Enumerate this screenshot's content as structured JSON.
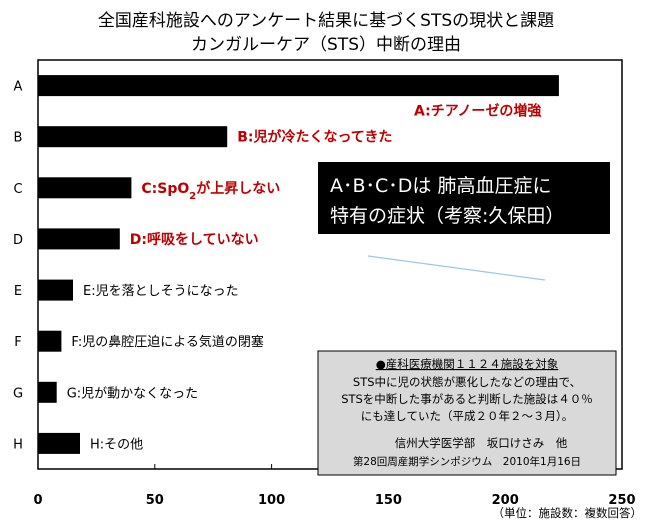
{
  "chart_data": {
    "type": "bar",
    "orientation": "horizontal",
    "title": "全国産科施設へのアンケート結果に基づくSTSの現状と課題",
    "subtitle": "カンガルーケア（STS）中断の理由",
    "categories": [
      "A",
      "B",
      "C",
      "D",
      "E",
      "F",
      "G",
      "H"
    ],
    "values": [
      223,
      81,
      40,
      35,
      15,
      10,
      8,
      18
    ],
    "xlim": [
      0,
      250
    ],
    "xticks": [
      0,
      50,
      100,
      150,
      200,
      250
    ],
    "unit_note": "（単位：施設数：複数回答）",
    "grid": false,
    "bar_color": "#000000",
    "highlight_color": "#c00000",
    "annotations": [
      {
        "category": "A",
        "label": "A:チアノーゼの増強",
        "color": "#c00000",
        "highlight": true
      },
      {
        "category": "B",
        "label": "B:児が冷たくなってきた",
        "color": "#c00000",
        "highlight": true
      },
      {
        "category": "C",
        "label_prefix": "C:SpO",
        "label_sub": "2",
        "label_suffix": "が上昇しない",
        "color": "#c00000",
        "highlight": true
      },
      {
        "category": "D",
        "label": "D:呼吸をしていない",
        "color": "#c00000",
        "highlight": true
      },
      {
        "category": "E",
        "label": "E:児を落としそうになった",
        "color": "#000000",
        "highlight": false
      },
      {
        "category": "F",
        "label": "F:児の鼻腔圧迫による気道の閉塞",
        "color": "#000000",
        "highlight": false
      },
      {
        "category": "G",
        "label": "G:児が動かなくなった",
        "color": "#000000",
        "highlight": false
      },
      {
        "category": "H",
        "label": "H:その他",
        "color": "#000000",
        "highlight": false
      }
    ],
    "callout": {
      "line1": "A･B･C･Dは 肺高血圧症に",
      "line2": "特有の症状（考察:久保田）"
    },
    "source_box": {
      "heading": "●産科医療機関１１２４施設を対象",
      "line1": "STS中に児の状態が悪化したなどの理由で、",
      "line2": "STSを中断した事があると判断した施設は４０％",
      "line3": "にも達していた（平成２０年２〜３月）。",
      "author": "信州大学医学部　坂口けさみ　他",
      "event": "第28回周産期学シンポジウム　2010年1月16日"
    }
  }
}
